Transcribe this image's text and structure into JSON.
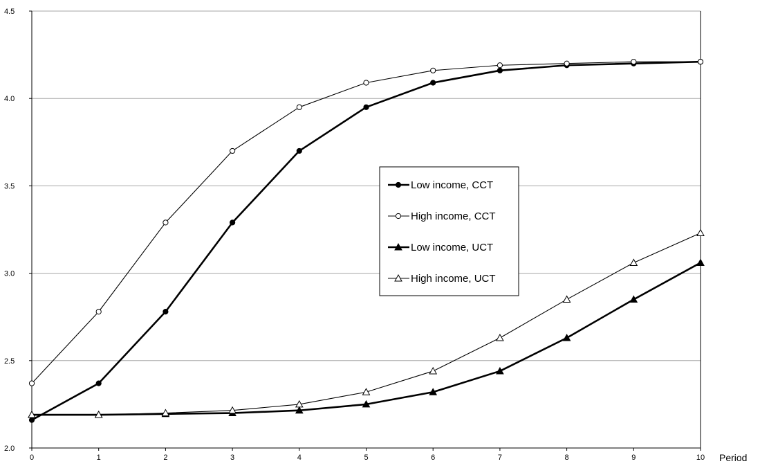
{
  "chart_data": {
    "type": "line",
    "title": "",
    "xlabel": "Period",
    "ylabel": "",
    "xlim": [
      0,
      10
    ],
    "ylim": [
      2.0,
      4.5
    ],
    "xticks": [
      0,
      1,
      2,
      3,
      4,
      5,
      6,
      7,
      8,
      9,
      10
    ],
    "yticks": [
      "2.0",
      "2.5",
      "3.0",
      "3.5",
      "4.0",
      "4.5"
    ],
    "grid": "horizontal",
    "legend_position": "center-right",
    "x": [
      0,
      1,
      2,
      3,
      4,
      5,
      6,
      7,
      8,
      9,
      10
    ],
    "series": [
      {
        "name": "Low income, CCT",
        "marker": "filled-circle",
        "line": "thick",
        "values": [
          2.16,
          2.37,
          2.78,
          3.29,
          3.7,
          3.95,
          4.09,
          4.16,
          4.19,
          4.2,
          4.21
        ]
      },
      {
        "name": "High income, CCT",
        "marker": "open-circle",
        "line": "thin",
        "values": [
          2.37,
          2.78,
          3.29,
          3.7,
          3.95,
          4.09,
          4.16,
          4.19,
          4.2,
          4.21,
          4.21
        ]
      },
      {
        "name": "Low income, UCT",
        "marker": "filled-triangle",
        "line": "thick",
        "values": [
          2.19,
          2.19,
          2.195,
          2.2,
          2.215,
          2.25,
          2.32,
          2.44,
          2.63,
          2.85,
          3.06
        ]
      },
      {
        "name": "High income, UCT",
        "marker": "open-triangle",
        "line": "thin",
        "values": [
          2.19,
          2.19,
          2.2,
          2.215,
          2.25,
          2.32,
          2.44,
          2.63,
          2.85,
          3.06,
          3.23
        ]
      }
    ]
  }
}
